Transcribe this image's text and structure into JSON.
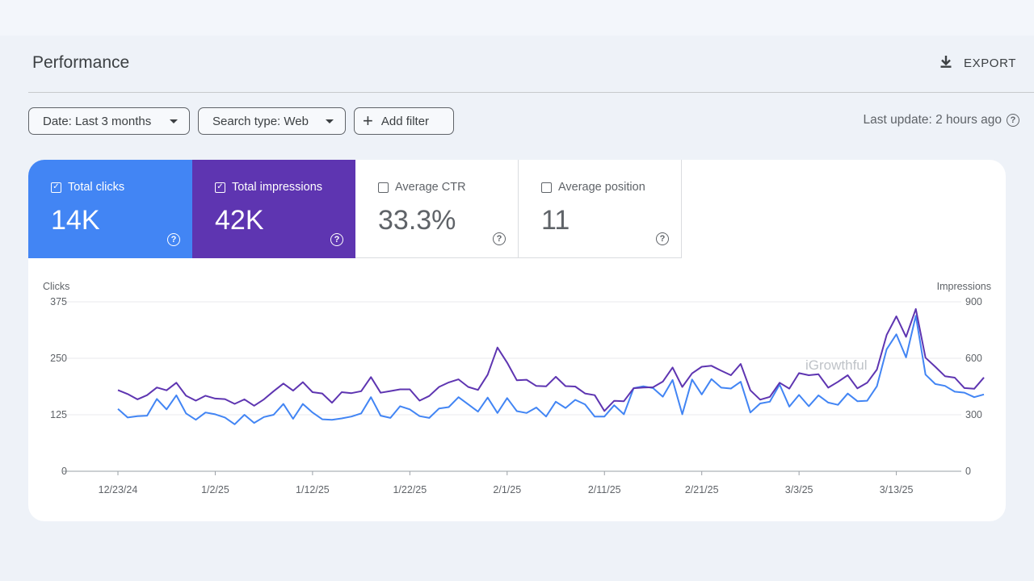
{
  "header": {
    "title": "Performance",
    "export_label": "EXPORT"
  },
  "filters": {
    "date": "Date: Last 3 months",
    "search_type": "Search type: Web",
    "add_filter": "Add filter",
    "last_update": "Last update: 2 hours ago"
  },
  "metrics": [
    {
      "label": "Total clicks",
      "value": "14K",
      "checked": true
    },
    {
      "label": "Total impressions",
      "value": "42K",
      "checked": true
    },
    {
      "label": "Average CTR",
      "value": "33.3%",
      "checked": false
    },
    {
      "label": "Average position",
      "value": "11",
      "checked": false
    }
  ],
  "colors": {
    "clicks": "#4285f4",
    "impressions": "#5e35b1"
  },
  "watermark": "iGrowthful",
  "chart_data": {
    "type": "line",
    "ylabel": "Clicks",
    "y2label": "Impressions",
    "ylim": [
      0,
      375
    ],
    "y2lim": [
      0,
      900
    ],
    "yticks": [
      "0",
      "125",
      "250",
      "375"
    ],
    "y2ticks": [
      "0",
      "300",
      "600",
      "900"
    ],
    "xticks": [
      "12/23/24",
      "1/2/25",
      "1/12/25",
      "1/22/25",
      "2/1/25",
      "2/11/25",
      "2/21/25",
      "3/3/25",
      "3/13/25"
    ],
    "x_start": "2024-12-23",
    "grid": true,
    "series": [
      {
        "name": "Total clicks",
        "axis": "left",
        "values": [
          138,
          119,
          122,
          123,
          160,
          137,
          168,
          128,
          114,
          130,
          126,
          119,
          104,
          125,
          107,
          120,
          125,
          149,
          116,
          149,
          130,
          115,
          114,
          117,
          121,
          128,
          164,
          123,
          118,
          144,
          137,
          122,
          118,
          139,
          142,
          164,
          148,
          132,
          163,
          129,
          162,
          133,
          129,
          141,
          121,
          154,
          140,
          158,
          148,
          121,
          121,
          146,
          126,
          184,
          188,
          184,
          165,
          202,
          126,
          203,
          170,
          204,
          185,
          183,
          198,
          130,
          150,
          154,
          192,
          143,
          169,
          144,
          168,
          152,
          147,
          172,
          155,
          156,
          188,
          270,
          303,
          252,
          344,
          214,
          193,
          189,
          176,
          174,
          164,
          170
        ]
      },
      {
        "name": "Total impressions",
        "axis": "right",
        "values": [
          431,
          410,
          382,
          404,
          445,
          430,
          470,
          401,
          375,
          401,
          386,
          383,
          358,
          382,
          348,
          382,
          425,
          466,
          428,
          473,
          420,
          413,
          364,
          420,
          415,
          425,
          500,
          417,
          426,
          435,
          435,
          375,
          400,
          448,
          472,
          488,
          448,
          432,
          513,
          657,
          577,
          483,
          486,
          453,
          451,
          502,
          452,
          450,
          413,
          404,
          320,
          374,
          372,
          441,
          445,
          446,
          476,
          551,
          448,
          520,
          555,
          560,
          534,
          510,
          570,
          430,
          380,
          395,
          470,
          439,
          521,
          510,
          515,
          444,
          475,
          510,
          440,
          470,
          540,
          724,
          823,
          714,
          862,
          603,
          555,
          505,
          497,
          442,
          438,
          498
        ]
      }
    ]
  }
}
